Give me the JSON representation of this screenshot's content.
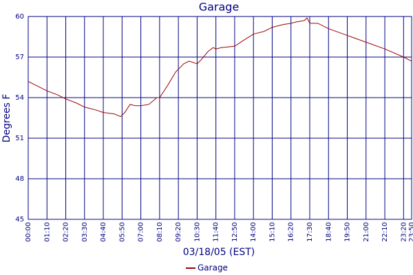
{
  "chart_data": {
    "type": "line",
    "title": "Garage",
    "x_label": "03/18/05 (EST)",
    "y_label": "Degrees F",
    "xlim": [
      0,
      1430
    ],
    "ylim": [
      45,
      60
    ],
    "xticks": [
      {
        "value": 0,
        "label": "00:00"
      },
      {
        "value": 70,
        "label": "01:10"
      },
      {
        "value": 140,
        "label": "02:20"
      },
      {
        "value": 210,
        "label": "03:30"
      },
      {
        "value": 280,
        "label": "04:40"
      },
      {
        "value": 350,
        "label": "05:50"
      },
      {
        "value": 420,
        "label": "07:00"
      },
      {
        "value": 490,
        "label": "08:10"
      },
      {
        "value": 560,
        "label": "09:20"
      },
      {
        "value": 630,
        "label": "10:30"
      },
      {
        "value": 700,
        "label": "11:40"
      },
      {
        "value": 770,
        "label": "12:50"
      },
      {
        "value": 840,
        "label": "14:00"
      },
      {
        "value": 910,
        "label": "15:10"
      },
      {
        "value": 980,
        "label": "16:20"
      },
      {
        "value": 1050,
        "label": "17:30"
      },
      {
        "value": 1120,
        "label": "18:40"
      },
      {
        "value": 1190,
        "label": "19:50"
      },
      {
        "value": 1260,
        "label": "21:00"
      },
      {
        "value": 1330,
        "label": "22:10"
      },
      {
        "value": 1400,
        "label": "23:20"
      },
      {
        "value": 1430,
        "label": "23:50"
      }
    ],
    "yticks": [
      45,
      48,
      51,
      54,
      57,
      60
    ],
    "grid": true,
    "x": [
      0,
      30,
      70,
      110,
      140,
      180,
      210,
      250,
      280,
      320,
      345,
      350,
      360,
      380,
      400,
      420,
      450,
      480,
      490,
      520,
      550,
      560,
      580,
      600,
      630,
      645,
      670,
      690,
      700,
      720,
      770,
      800,
      840,
      880,
      910,
      950,
      980,
      1000,
      1030,
      1040,
      1050,
      1080,
      1120,
      1190,
      1260,
      1330,
      1400,
      1430
    ],
    "series": [
      {
        "name": "Garage",
        "color": "#990000",
        "values": [
          55.2,
          54.9,
          54.5,
          54.2,
          53.9,
          53.6,
          53.3,
          53.1,
          52.9,
          52.8,
          52.6,
          52.7,
          52.9,
          53.5,
          53.4,
          53.4,
          53.5,
          54.0,
          54.0,
          54.9,
          55.9,
          56.1,
          56.5,
          56.7,
          56.5,
          56.8,
          57.4,
          57.7,
          57.6,
          57.7,
          57.8,
          58.2,
          58.7,
          58.9,
          59.2,
          59.4,
          59.5,
          59.6,
          59.7,
          59.9,
          59.5,
          59.5,
          59.1,
          58.6,
          58.1,
          57.6,
          57.0,
          56.7
        ]
      }
    ],
    "legend": "bottom"
  }
}
